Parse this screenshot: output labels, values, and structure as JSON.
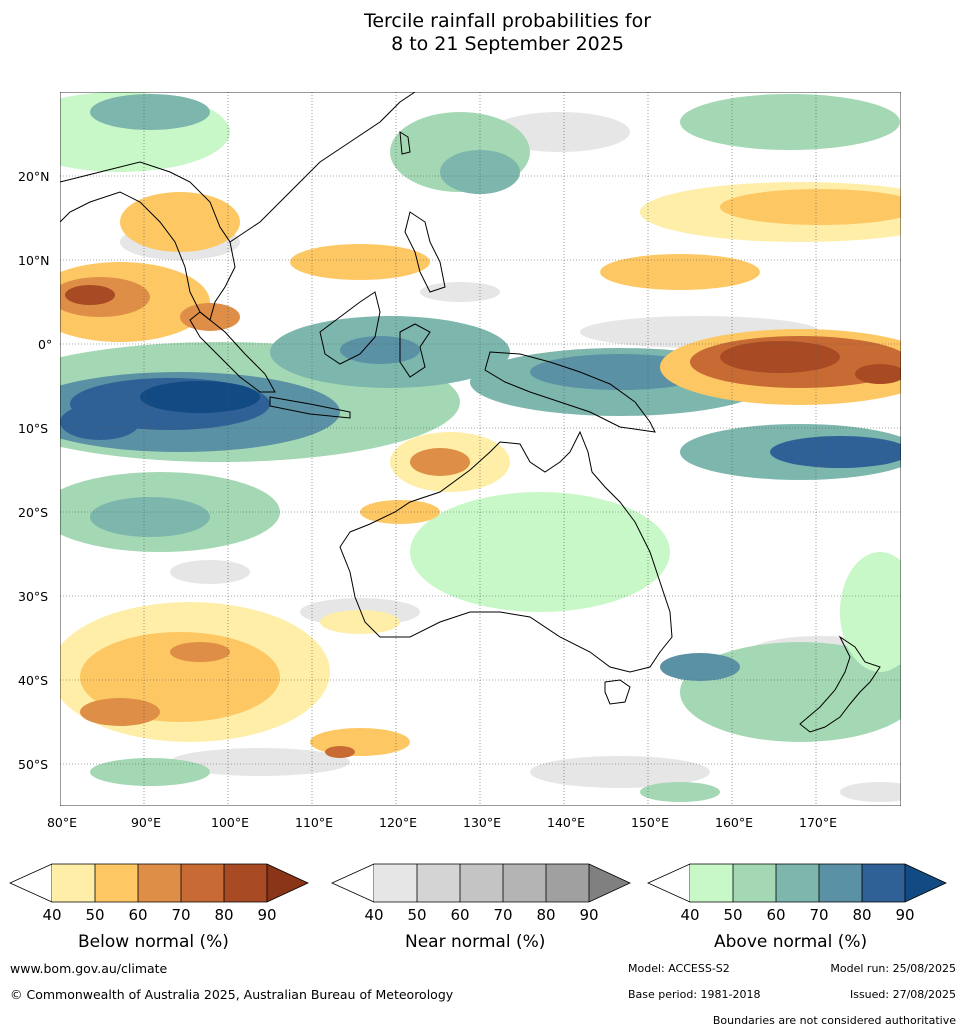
{
  "title": {
    "line1": "Tercile rainfall probabilities for",
    "line2": "8 to 21 September 2025"
  },
  "map": {
    "lat_ticks": [
      "20°N",
      "10°N",
      "0°",
      "10°S",
      "20°S",
      "30°S",
      "40°S",
      "50°S"
    ],
    "lon_ticks": [
      "80°E",
      "90°E",
      "100°E",
      "110°E",
      "120°E",
      "130°E",
      "140°E",
      "150°E",
      "160°E",
      "170°E"
    ]
  },
  "legends": [
    {
      "name": "Below normal (%)",
      "ticks": [
        "40",
        "50",
        "60",
        "70",
        "80",
        "90"
      ],
      "colors": [
        "#ffeea8",
        "#fdc863",
        "#de8e46",
        "#c86a34",
        "#a84a24",
        "#8a3418"
      ]
    },
    {
      "name": "Near normal (%)",
      "ticks": [
        "40",
        "50",
        "60",
        "70",
        "80",
        "90"
      ],
      "colors": [
        "#e6e6e6",
        "#d4d4d4",
        "#c4c4c4",
        "#b4b4b4",
        "#a0a0a0",
        "#808080"
      ]
    },
    {
      "name": "Above normal (%)",
      "ticks": [
        "40",
        "50",
        "60",
        "70",
        "80",
        "90"
      ],
      "colors": [
        "#c8f7c8",
        "#a4d8b4",
        "#7db6ac",
        "#5a91a4",
        "#2f6096",
        "#124b84"
      ]
    }
  ],
  "footer": {
    "url": "www.bom.gov.au/climate",
    "copyright": "© Commonwealth of Australia 2025, Australian Bureau of Meteorology",
    "model": "Model: ACCESS-S2",
    "model_run": "Model run: 25/08/2025",
    "base_period": "Base period: 1981-2018",
    "issued": "Issued: 27/08/2025",
    "disclaimer": "Boundaries are not considered authoritative"
  }
}
